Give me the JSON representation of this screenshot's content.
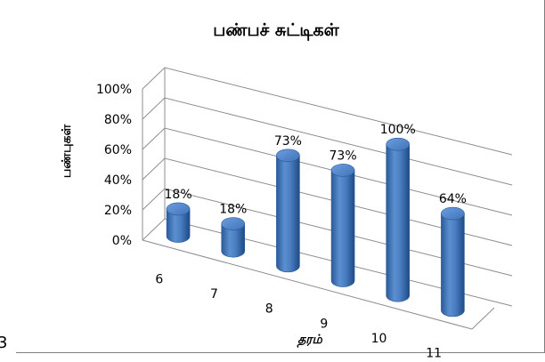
{
  "chart_data": {
    "type": "bar",
    "style": "3d-cylinder",
    "title": "பண்பச் சுட்டிகள்",
    "xlabel": "தரம்",
    "ylabel": "பண்புகள்",
    "categories": [
      "6",
      "7",
      "8",
      "9",
      "10",
      "11"
    ],
    "values": [
      18,
      18,
      73,
      73,
      100,
      64
    ],
    "data_labels": [
      "18%",
      "18%",
      "73%",
      "73%",
      "100%",
      "64%"
    ],
    "y_ticks": [
      "0%",
      "20%",
      "40%",
      "60%",
      "80%",
      "100%"
    ],
    "ylim": [
      0,
      100
    ],
    "grid": true,
    "bar_color": "#4f81bd"
  },
  "corner_mark": "3"
}
